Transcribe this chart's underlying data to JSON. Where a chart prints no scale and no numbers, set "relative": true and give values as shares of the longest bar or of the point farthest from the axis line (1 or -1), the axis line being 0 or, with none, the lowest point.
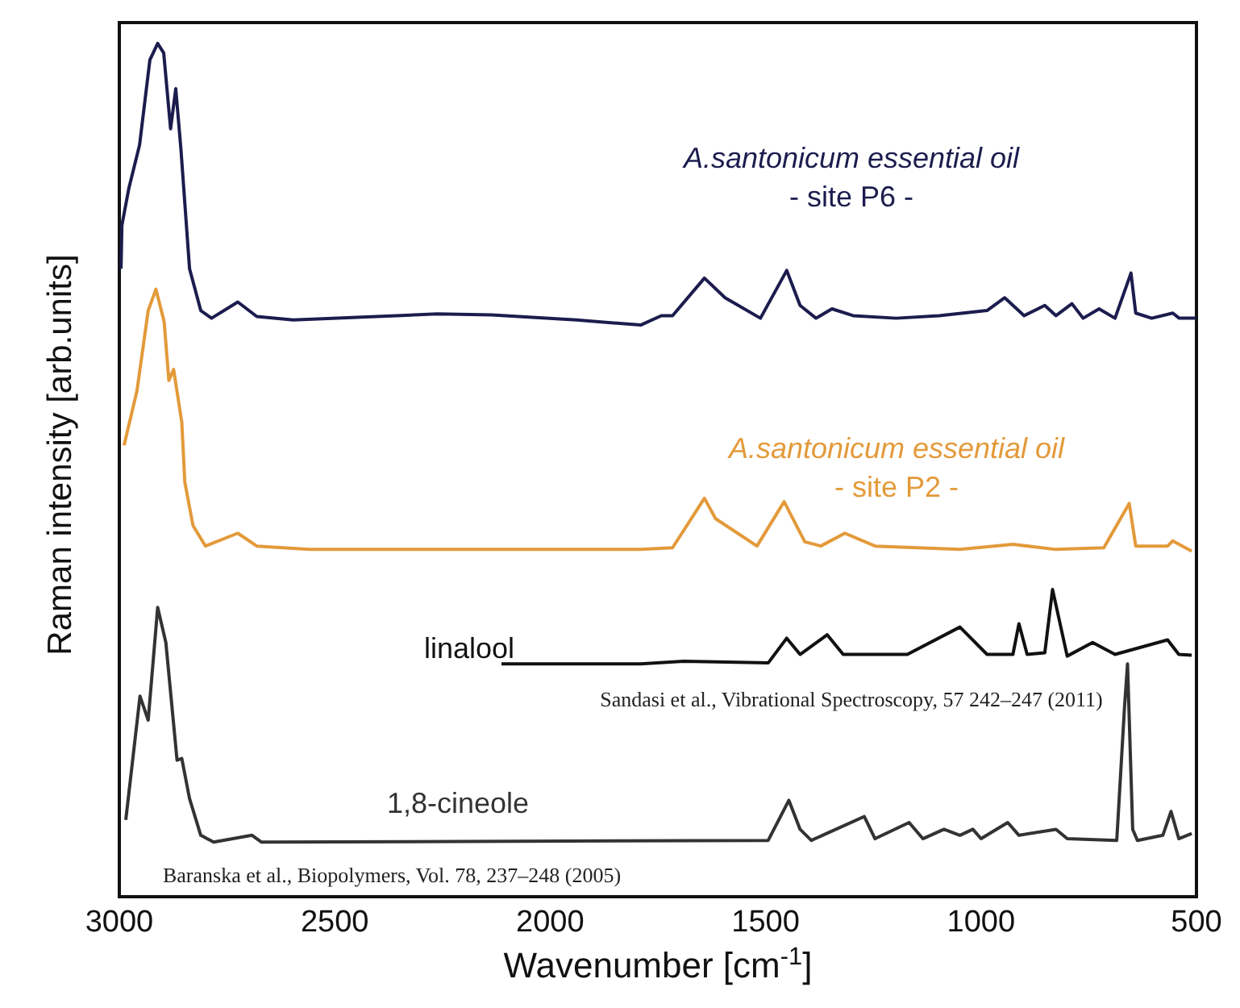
{
  "chart_data": {
    "type": "line",
    "relative": true,
    "xlabel": "Wavenumber [cm$^{-1}$]",
    "ylabel": "Raman intensity [arb.units]",
    "xlim": [
      3000,
      500
    ],
    "xticks": [
      3000,
      2500,
      2000,
      1500,
      1000,
      500
    ],
    "marker": "none",
    "line_style": "solid",
    "annotations": [
      "Sandasi et al., Vibrational Spectroscopy, 57 242–247 (2011)",
      "Baranska et al., Biopolymers, Vol. 78, 237–248 (2005)"
    ],
    "series": [
      {
        "name": "A.santonicum essential oil\n- site P6 -",
        "color": "#1c1c4e",
        "x": [
          2996,
          2994,
          2978,
          2953,
          2929,
          2911,
          2897,
          2881,
          2869,
          2857,
          2837,
          2811,
          2786,
          2725,
          2681,
          2596,
          2262,
          2136,
          1939,
          1790,
          1742,
          1716,
          1642,
          1594,
          1512,
          1451,
          1420,
          1383,
          1346,
          1297,
          1197,
          1097,
          986,
          945,
          900,
          852,
          826,
          789,
          763,
          726,
          689,
          652,
          641,
          604,
          555,
          540,
          500
        ],
        "values": [
          0.736,
          0.787,
          0.83,
          0.881,
          0.981,
          1,
          0.989,
          0.9,
          0.947,
          0.876,
          0.736,
          0.687,
          0.678,
          0.697,
          0.68,
          0.676,
          0.683,
          0.682,
          0.676,
          0.67,
          0.681,
          0.681,
          0.725,
          0.702,
          0.678,
          0.734,
          0.693,
          0.678,
          0.689,
          0.681,
          0.678,
          0.681,
          0.687,
          0.702,
          0.681,
          0.693,
          0.681,
          0.695,
          0.678,
          0.689,
          0.678,
          0.731,
          0.684,
          0.678,
          0.684,
          0.678,
          0.678
        ]
      },
      {
        "name": "A.santonicum essential oil\n- site P2 -",
        "color": "#e39a3a",
        "x": [
          2989,
          2959,
          2933,
          2915,
          2896,
          2885,
          2874,
          2855,
          2848,
          2829,
          2800,
          2725,
          2681,
          2559,
          1790,
          1716,
          1642,
          1616,
          1520,
          1457,
          1409,
          1372,
          1316,
          1246,
          1049,
          926,
          826,
          715,
          656,
          641,
          567,
          555,
          511
        ],
        "values": [
          0.529,
          0.593,
          0.687,
          0.712,
          0.674,
          0.605,
          0.618,
          0.556,
          0.486,
          0.435,
          0.411,
          0.426,
          0.411,
          0.407,
          0.407,
          0.409,
          0.467,
          0.443,
          0.411,
          0.463,
          0.416,
          0.411,
          0.426,
          0.411,
          0.407,
          0.413,
          0.407,
          0.409,
          0.461,
          0.411,
          0.411,
          0.417,
          0.405
        ]
      },
      {
        "name": "linalool",
        "color": "#111111",
        "x": [
          2113,
          1790,
          1690,
          1494,
          1451,
          1420,
          1357,
          1320,
          1171,
          1049,
          986,
          926,
          912,
          893,
          852,
          834,
          800,
          741,
          689,
          567,
          541,
          511
        ],
        "values": [
          0.273,
          0.273,
          0.276,
          0.274,
          0.303,
          0.284,
          0.307,
          0.284,
          0.284,
          0.316,
          0.284,
          0.284,
          0.32,
          0.284,
          0.286,
          0.36,
          0.282,
          0.298,
          0.284,
          0.301,
          0.284,
          0.283
        ]
      },
      {
        "name": "1,8-cineole",
        "color": "#333333",
        "x": [
          2985,
          2952,
          2933,
          2911,
          2892,
          2866,
          2855,
          2837,
          2811,
          2781,
          2692,
          2670,
          1494,
          1446,
          1420,
          1394,
          1271,
          1246,
          1167,
          1135,
          1086,
          1049,
          1019,
          1000,
          938,
          912,
          826,
          800,
          685,
          667,
          660,
          648,
          637,
          578,
          559,
          541,
          511
        ],
        "values": [
          0.09,
          0.235,
          0.207,
          0.339,
          0.298,
          0.16,
          0.162,
          0.115,
          0.072,
          0.064,
          0.072,
          0.064,
          0.066,
          0.113,
          0.079,
          0.066,
          0.094,
          0.068,
          0.087,
          0.068,
          0.079,
          0.072,
          0.079,
          0.068,
          0.087,
          0.072,
          0.079,
          0.068,
          0.066,
          0.222,
          0.273,
          0.079,
          0.066,
          0.072,
          0.1,
          0.068,
          0.074
        ]
      }
    ]
  }
}
